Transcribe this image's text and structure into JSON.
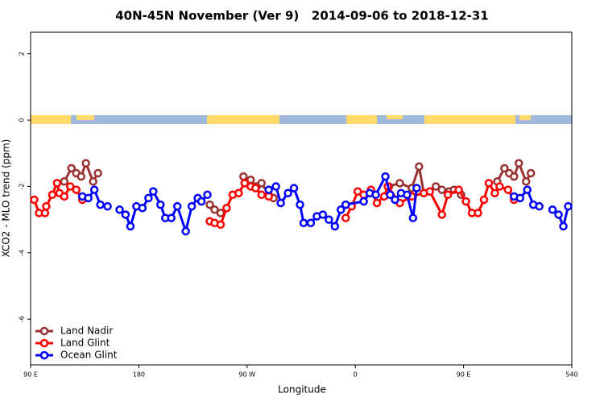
{
  "chart_data": {
    "type": "line",
    "title": "40N-45N November (Ver 9)   2014-09-06 to 2018-12-31",
    "x_label": "Longitude",
    "y_label": "XCO2 - MLO trend (ppm)",
    "xlim": [
      90,
      540
    ],
    "ylim": [
      -7.38,
      2.65
    ],
    "xticks": [
      {
        "value": 90,
        "label": "90 E"
      },
      180,
      {
        "value": 270,
        "label": "90 W"
      },
      {
        "value": 360,
        "label": "0"
      },
      {
        "value": 450,
        "label": "90 E"
      },
      540
    ],
    "yticks": [
      2,
      0,
      -2,
      -4,
      -6
    ],
    "legend": "bottom-left",
    "series": [
      {
        "name": "Land Nadir",
        "color": "#993333",
        "x": [
          118,
          124,
          128,
          132,
          136,
          142,
          146,
          160,
          239,
          243,
          248,
          265,
          267,
          273,
          278,
          282,
          288,
          292,
          380,
          388,
          397,
          407,
          413,
          417,
          427,
          432,
          438,
          442,
          448,
          460,
          478,
          484,
          488,
          492,
          496,
          502,
          506
        ],
        "values": [
          -1.85,
          -1.45,
          -1.6,
          -1.7,
          -1.3,
          -1.85,
          -1.6,
          null,
          -2.55,
          -2.7,
          -2.8,
          null,
          -1.7,
          -1.8,
          -2.0,
          -1.9,
          -2.25,
          -2.35,
          null,
          -2.0,
          -1.9,
          -2.05,
          -1.4,
          -2.2,
          -2.0,
          -2.1,
          -2.15,
          -2.1,
          -2.25,
          null,
          -1.85,
          -1.45,
          -1.6,
          -1.7,
          -1.3,
          -1.85,
          -1.6
        ]
      },
      {
        "name": "Land Glint",
        "color": "#ff0000",
        "x": [
          93,
          97,
          102,
          103,
          108,
          112,
          114,
          118,
          123,
          128,
          133,
          180,
          239,
          243,
          248,
          253,
          258,
          263,
          268,
          273,
          277,
          282,
          288,
          340,
          352,
          357,
          362,
          367,
          373,
          378,
          384,
          387,
          397,
          407,
          417,
          422,
          432,
          437,
          446,
          452,
          457,
          462,
          467,
          471,
          476,
          480,
          487,
          492
        ],
        "values": [
          -2.4,
          -2.8,
          -2.8,
          -2.6,
          -2.25,
          -1.9,
          -2.2,
          -2.3,
          -2.0,
          -2.1,
          -2.4,
          null,
          -3.05,
          -3.1,
          -3.15,
          -2.65,
          -2.25,
          -2.2,
          -1.9,
          -2.0,
          -2.05,
          -2.25,
          -2.3,
          null,
          -2.95,
          -2.6,
          -2.15,
          -2.25,
          -2.1,
          -2.5,
          -2.3,
          -2.0,
          -2.5,
          -2.3,
          -2.2,
          -2.15,
          -2.85,
          -2.25,
          -2.1,
          -2.45,
          -2.8,
          -2.8,
          -2.4,
          -1.9,
          -2.2,
          -2.0,
          -2.1,
          -2.4
        ]
      },
      {
        "name": "Ocean Glint",
        "color": "#0000ff",
        "x": [
          133,
          138,
          143,
          148,
          154,
          160,
          164,
          169,
          173,
          178,
          183,
          188,
          192,
          198,
          202,
          207,
          212,
          219,
          224,
          229,
          232,
          237,
          260,
          288,
          294,
          298,
          304,
          309,
          314,
          317,
          323,
          328,
          333,
          338,
          343,
          348,
          352,
          367,
          372,
          377,
          385,
          389,
          393,
          398,
          403,
          408,
          411,
          420,
          492,
          497,
          503,
          508,
          513,
          520,
          524,
          529,
          533,
          537
        ],
        "values": [
          -2.3,
          -2.35,
          -2.1,
          -2.55,
          -2.6,
          null,
          -2.7,
          -2.85,
          -3.2,
          -2.6,
          -2.65,
          -2.35,
          -2.15,
          -2.55,
          -2.95,
          -2.95,
          -2.6,
          -3.35,
          -2.6,
          -2.35,
          -2.45,
          -2.25,
          null,
          -2.1,
          -2.0,
          -2.5,
          -2.2,
          -2.05,
          -2.55,
          -3.1,
          -3.1,
          -2.9,
          -2.85,
          -3.0,
          -3.2,
          -2.7,
          -2.55,
          -2.45,
          -2.2,
          -2.25,
          -1.7,
          -2.25,
          -2.4,
          -2.2,
          -2.25,
          -2.95,
          -2.05,
          null,
          -2.3,
          -2.35,
          -2.1,
          -2.55,
          -2.6,
          null,
          -2.7,
          -2.85,
          -3.2,
          -2.6
        ]
      }
    ]
  }
}
